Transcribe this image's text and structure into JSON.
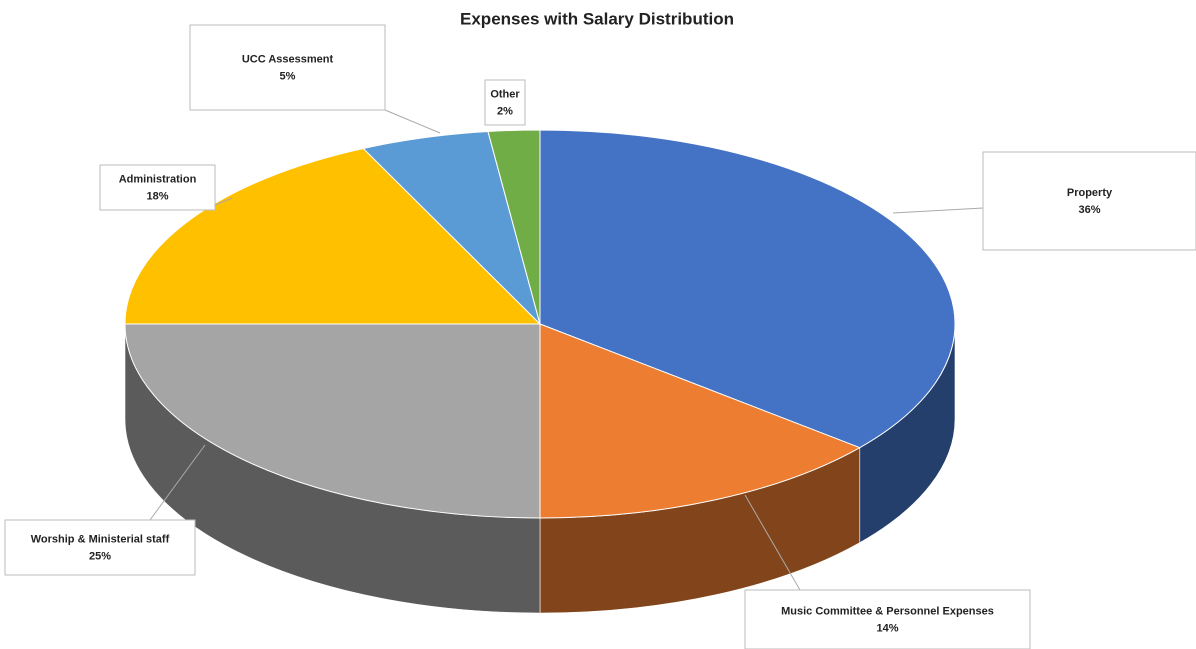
{
  "chart_data": {
    "type": "pie",
    "title": "Expenses with Salary Distribution",
    "categories": [
      "Property",
      "Music Committee  & Personnel Expenses",
      "Worship & Ministerial staff",
      "Administration",
      "UCC Assessment",
      "Other"
    ],
    "values": [
      36,
      14,
      25,
      18,
      5,
      2
    ],
    "value_labels": [
      "36%",
      "14%",
      "25%",
      "18%",
      "5%",
      "2%"
    ],
    "colors": [
      "#4472c4",
      "#ed7d31",
      "#a5a5a5",
      "#ffc000",
      "#5b9bd5",
      "#70ad47"
    ]
  }
}
